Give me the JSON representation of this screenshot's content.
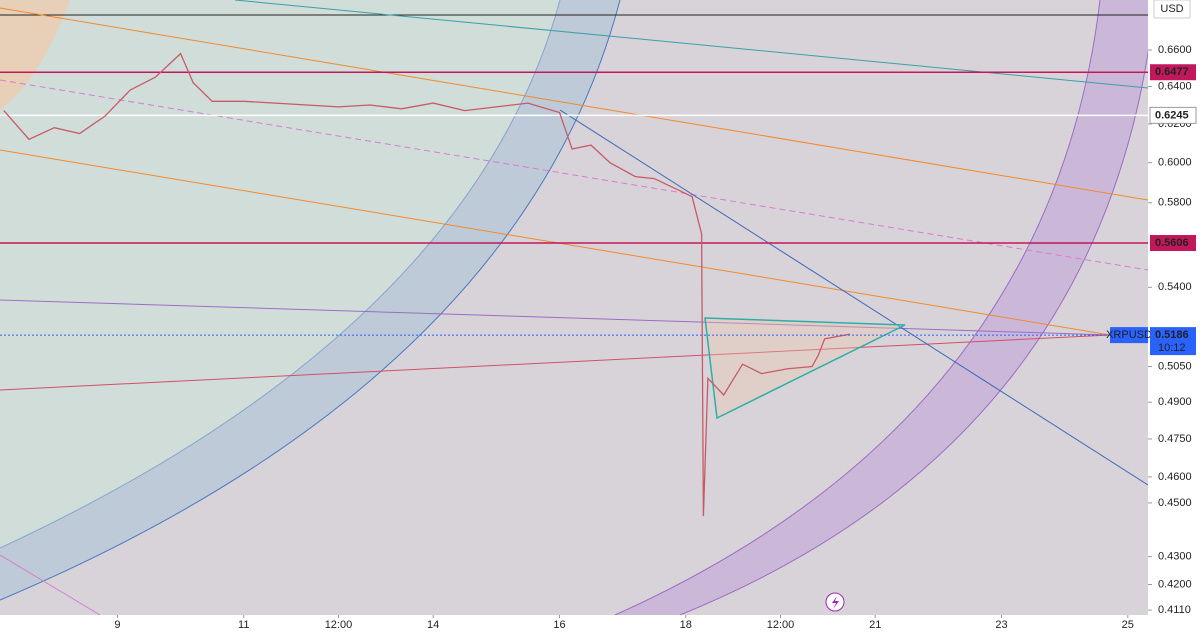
{
  "chart_data": {
    "type": "line",
    "log_scale": true,
    "currency": "USD",
    "series": [
      {
        "name": "XRPUSD",
        "color": "#c75a6a",
        "x": [
          7.2,
          7.6,
          8.0,
          8.4,
          8.8,
          9.2,
          9.6,
          10.0,
          10.2,
          10.5,
          11.0,
          11.5,
          12.0,
          12.5,
          13.0,
          13.5,
          14.0,
          14.5,
          15.0,
          15.5,
          16.0,
          16.2,
          16.5,
          16.8,
          17.2,
          17.5,
          17.9,
          18.1,
          18.25,
          18.28,
          18.35,
          18.6,
          18.9,
          19.2,
          19.6,
          20.0,
          20.1,
          20.2,
          20.4,
          20.6
        ],
        "values": [
          0.627,
          0.612,
          0.618,
          0.615,
          0.624,
          0.638,
          0.645,
          0.658,
          0.642,
          0.632,
          0.632,
          0.631,
          0.63,
          0.629,
          0.63,
          0.628,
          0.631,
          0.627,
          0.629,
          0.631,
          0.626,
          0.607,
          0.609,
          0.6,
          0.593,
          0.592,
          0.586,
          0.583,
          0.565,
          0.445,
          0.5,
          0.493,
          0.506,
          0.502,
          0.504,
          0.505,
          0.51,
          0.517,
          0.518,
          0.519
        ]
      }
    ],
    "last_price": {
      "symbol": "XRPUSD",
      "value": 0.5186,
      "countdown": "10:12",
      "color": "#2962ff"
    },
    "levels": [
      {
        "value": 0.6477,
        "color": "#c2185b"
      },
      {
        "value": 0.6245,
        "color": "#ffffff"
      },
      {
        "value": 0.5606,
        "color": "#c2185b"
      }
    ],
    "xlim": [
      7.14,
      25.32
    ],
    "xticks": [
      9,
      11,
      {
        "value": 12.5,
        "label": "12:00"
      },
      14,
      16,
      18,
      {
        "value": 19.5,
        "label": "12:00"
      },
      21,
      23,
      25
    ],
    "ylim": [
      0.4093,
      0.6885
    ],
    "yticks": [
      {
        "value": 0.66,
        "label": "0.6600"
      },
      {
        "value": 0.64,
        "label": "0.6400"
      },
      {
        "value": 0.62,
        "label": "0.6200"
      },
      {
        "value": 0.6,
        "label": "0.6000"
      },
      {
        "value": 0.58,
        "label": "0.5800"
      },
      {
        "value": 0.54,
        "label": "0.5400"
      },
      {
        "value": 0.505,
        "label": "0.5050"
      },
      {
        "value": 0.49,
        "label": "0.4900"
      },
      {
        "value": 0.475,
        "label": "0.4750"
      },
      {
        "value": 0.46,
        "label": "0.4600"
      },
      {
        "value": 0.45,
        "label": "0.4500"
      },
      {
        "value": 0.43,
        "label": "0.4300"
      },
      {
        "value": 0.42,
        "label": "0.4200"
      },
      {
        "value": 0.411,
        "label": "0.4110"
      }
    ]
  }
}
